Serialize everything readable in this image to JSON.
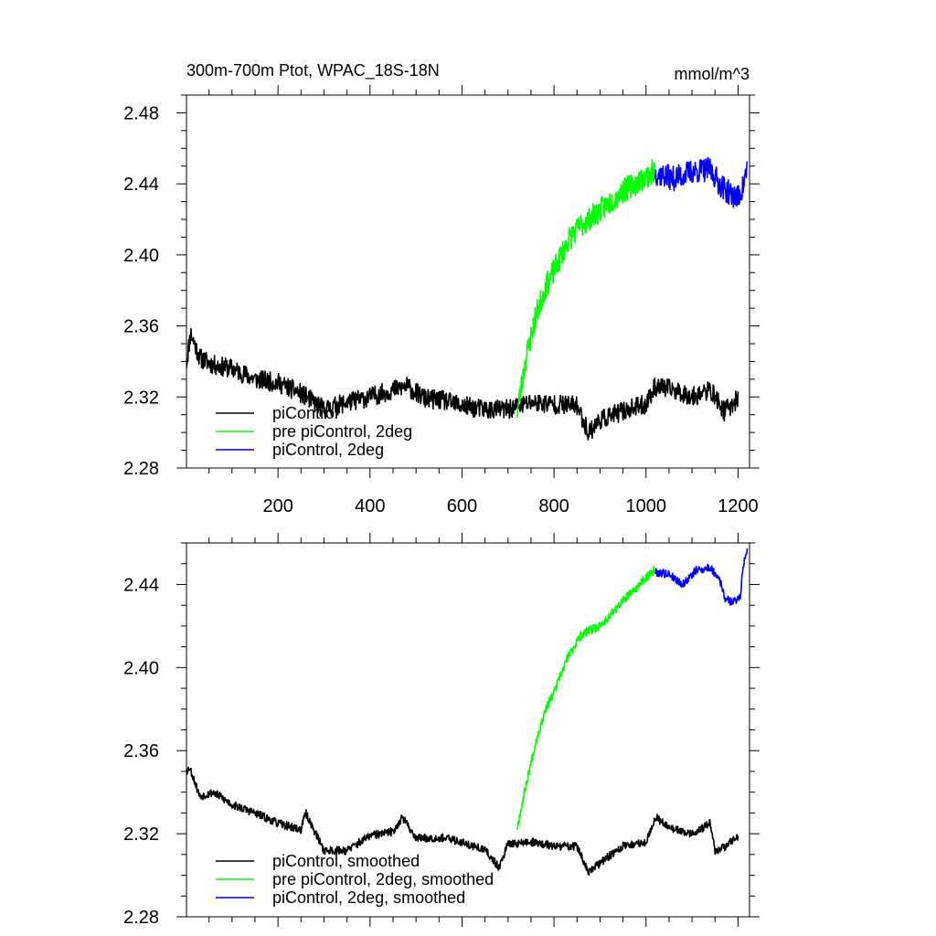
{
  "chart_data": [
    {
      "type": "line",
      "title_left": "300m-700m Ptot, WPAC_18S-18N",
      "title_right": "mmol/m^3",
      "xlabel": "",
      "ylabel": "",
      "xlim": [
        1,
        1225
      ],
      "ylim": [
        2.28,
        2.49
      ],
      "x_ticks": [
        200,
        400,
        600,
        800,
        1000,
        1200
      ],
      "x_tick_labels": [
        "200",
        "400",
        "600",
        "800",
        "1000",
        "1200"
      ],
      "y_ticks": [
        2.28,
        2.32,
        2.36,
        2.4,
        2.44,
        2.48
      ],
      "y_tick_labels": [
        "2.28",
        "2.32",
        "2.36",
        "2.40",
        "2.44",
        "2.48"
      ],
      "grid": false,
      "legend_position": "bottom-left",
      "series": [
        {
          "name": "piControl",
          "color": "#000000",
          "x": [
            1,
            10,
            30,
            60,
            100,
            150,
            200,
            250,
            300,
            350,
            400,
            450,
            480,
            520,
            560,
            600,
            650,
            700,
            750,
            800,
            850,
            875,
            900,
            950,
            1000,
            1020,
            1060,
            1100,
            1140,
            1170,
            1200
          ],
          "y": [
            2.339,
            2.356,
            2.342,
            2.338,
            2.336,
            2.33,
            2.328,
            2.322,
            2.313,
            2.317,
            2.32,
            2.324,
            2.326,
            2.319,
            2.318,
            2.315,
            2.313,
            2.313,
            2.317,
            2.316,
            2.315,
            2.3,
            2.307,
            2.312,
            2.316,
            2.326,
            2.324,
            2.32,
            2.324,
            2.312,
            2.319
          ],
          "noise": 0.0055,
          "seed": 11
        },
        {
          "name": "pre piControl, 2deg",
          "color": "#00ff00",
          "x": [
            720,
            740,
            760,
            780,
            800,
            830,
            860,
            900,
            950,
            1000,
            1020
          ],
          "y": [
            2.312,
            2.343,
            2.365,
            2.381,
            2.391,
            2.408,
            2.417,
            2.425,
            2.436,
            2.444,
            2.448
          ],
          "noise": 0.007,
          "seed": 23
        },
        {
          "name": "piControl, 2deg",
          "color": "#0000ff",
          "x": [
            1020,
            1060,
            1100,
            1140,
            1160,
            1180,
            1200,
            1212,
            1220
          ],
          "y": [
            2.446,
            2.443,
            2.447,
            2.448,
            2.44,
            2.435,
            2.432,
            2.439,
            2.45
          ],
          "noise": 0.007,
          "seed": 37
        }
      ]
    },
    {
      "type": "line",
      "title_left": "",
      "title_right": "",
      "xlabel": "",
      "ylabel": "",
      "xlim": [
        1,
        1225
      ],
      "ylim": [
        2.28,
        2.46
      ],
      "x_ticks": [
        200,
        400,
        600,
        800,
        1000,
        1200
      ],
      "x_tick_labels": [],
      "y_ticks": [
        2.28,
        2.32,
        2.36,
        2.4,
        2.44
      ],
      "y_tick_labels": [
        "2.28",
        "2.32",
        "2.36",
        "2.40",
        "2.44"
      ],
      "grid": false,
      "legend_position": "bottom-left",
      "series": [
        {
          "name": "piControl, smoothed",
          "color": "#000000",
          "x": [
            1,
            8,
            30,
            60,
            100,
            150,
            200,
            250,
            260,
            300,
            350,
            400,
            450,
            470,
            500,
            560,
            600,
            650,
            680,
            700,
            750,
            800,
            850,
            875,
            900,
            950,
            1000,
            1020,
            1060,
            1100,
            1140,
            1150,
            1180,
            1200
          ],
          "y": [
            2.35,
            2.352,
            2.338,
            2.34,
            2.334,
            2.33,
            2.325,
            2.322,
            2.33,
            2.312,
            2.312,
            2.319,
            2.321,
            2.328,
            2.318,
            2.318,
            2.316,
            2.312,
            2.304,
            2.315,
            2.316,
            2.314,
            2.314,
            2.301,
            2.306,
            2.314,
            2.316,
            2.328,
            2.322,
            2.32,
            2.325,
            2.311,
            2.315,
            2.319
          ],
          "noise": 0.002,
          "seed": 53
        },
        {
          "name": "pre piControl, 2deg, smoothed",
          "color": "#00ff00",
          "x": [
            720,
            740,
            760,
            780,
            800,
            830,
            860,
            900,
            950,
            1000,
            1020
          ],
          "y": [
            2.323,
            2.344,
            2.364,
            2.379,
            2.388,
            2.405,
            2.416,
            2.42,
            2.432,
            2.443,
            2.448
          ],
          "noise": 0.0022,
          "seed": 67
        },
        {
          "name": "piControl, 2deg, smoothed",
          "color": "#0000ff",
          "x": [
            1020,
            1050,
            1080,
            1110,
            1140,
            1160,
            1170,
            1180,
            1195,
            1205,
            1212,
            1220
          ],
          "y": [
            2.446,
            2.445,
            2.44,
            2.447,
            2.448,
            2.443,
            2.434,
            2.432,
            2.432,
            2.435,
            2.45,
            2.457
          ],
          "noise": 0.002,
          "seed": 79
        }
      ]
    }
  ]
}
